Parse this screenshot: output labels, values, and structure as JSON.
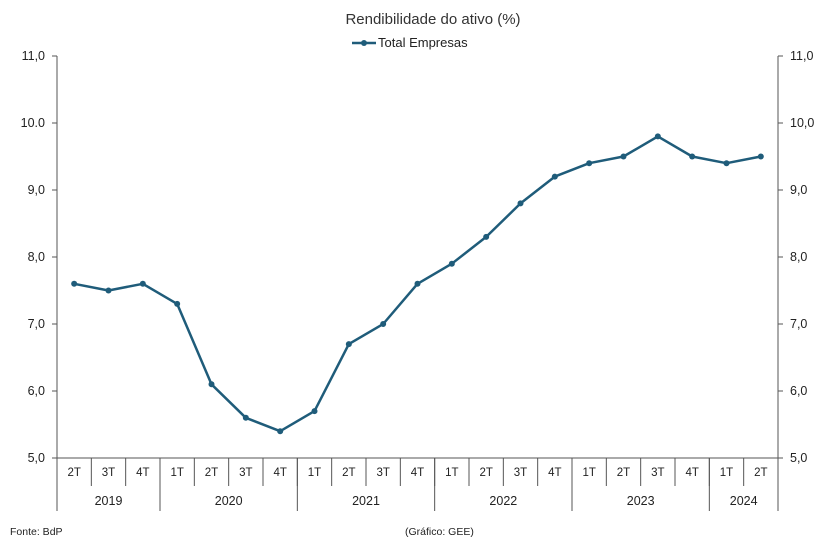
{
  "chart_data": {
    "type": "line",
    "title": "Rendibilidade do ativo (%)",
    "series": [
      {
        "name": "Total Empresas",
        "color": "#1f5c7a",
        "values": [
          7.6,
          7.5,
          7.6,
          7.3,
          6.1,
          5.6,
          5.4,
          5.7,
          6.7,
          7.0,
          7.6,
          7.9,
          8.3,
          8.8,
          9.2,
          9.4,
          9.5,
          9.8,
          9.5,
          9.4,
          9.5
        ]
      }
    ],
    "quarters": [
      "2T",
      "3T",
      "4T",
      "1T",
      "2T",
      "3T",
      "4T",
      "1T",
      "2T",
      "3T",
      "4T",
      "1T",
      "2T",
      "3T",
      "4T",
      "1T",
      "2T",
      "3T",
      "4T",
      "1T",
      "2T"
    ],
    "years": [
      {
        "label": "2019",
        "count": 3
      },
      {
        "label": "2020",
        "count": 4
      },
      {
        "label": "2021",
        "count": 4
      },
      {
        "label": "2022",
        "count": 4
      },
      {
        "label": "2023",
        "count": 4
      },
      {
        "label": "2024",
        "count": 2
      }
    ],
    "y_ticks_left": [
      "11,0",
      "10.0",
      "9,0",
      "8,0",
      "7,0",
      "6,0",
      "5,0"
    ],
    "y_ticks_right": [
      "11,0",
      "10,0",
      "9,0",
      "8,0",
      "7,0",
      "6,0",
      "5,0"
    ],
    "ylim": [
      5,
      11
    ],
    "grid": false,
    "legend_position": "top-center"
  },
  "footer": {
    "source": "Fonte: BdP",
    "credit": "(Gráfico: GEE)"
  }
}
